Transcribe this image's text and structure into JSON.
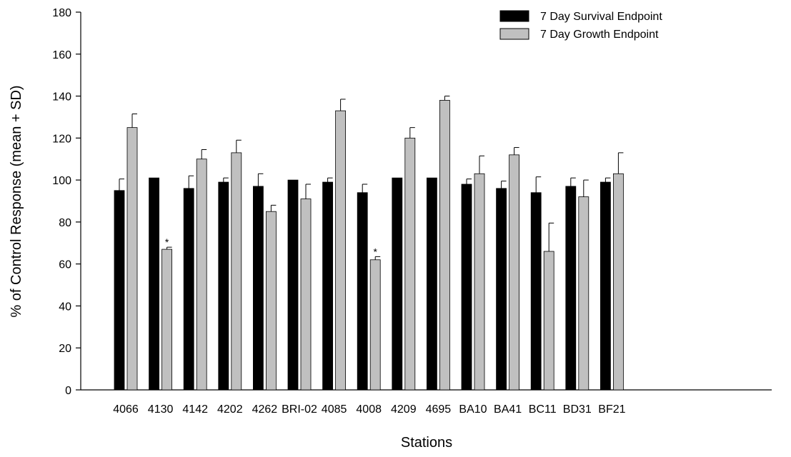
{
  "chart_data": {
    "type": "bar",
    "title": "",
    "xlabel": "Stations",
    "ylabel": "% of Control Response (mean + SD)",
    "ylim": [
      0,
      180
    ],
    "yticks": [
      0,
      20,
      40,
      60,
      80,
      100,
      120,
      140,
      160,
      180
    ],
    "grid": false,
    "legend_position": "top-right",
    "categories": [
      "4066",
      "4130",
      "4142",
      "4202",
      "4262",
      "BRI-02",
      "4085",
      "4008",
      "4209",
      "4695",
      "BA10",
      "BA41",
      "BC11",
      "BD31",
      "BF21"
    ],
    "series": [
      {
        "name": "7 Day Survival Endpoint",
        "color": "#000000",
        "values": [
          95,
          101,
          96,
          99,
          97,
          100,
          99,
          94,
          101,
          101,
          98,
          96,
          94,
          97,
          99
        ],
        "sd": [
          5.5,
          0,
          6,
          2,
          6,
          0,
          2,
          4,
          0,
          0,
          2.5,
          3.5,
          7.5,
          4,
          2
        ]
      },
      {
        "name": "7 Day Growth Endpoint",
        "color": "#c0c0c0",
        "values": [
          125,
          67,
          110,
          113,
          85,
          91,
          133,
          62,
          120,
          138,
          103,
          112,
          66,
          92,
          103
        ],
        "sd": [
          6.5,
          1,
          4.5,
          6,
          3,
          7,
          5.5,
          1.5,
          5,
          2,
          8.5,
          3.5,
          13.5,
          8,
          10
        ]
      }
    ],
    "annotations": [
      {
        "category": "4130",
        "series": "7 Day Growth Endpoint",
        "text": "*"
      },
      {
        "category": "4008",
        "series": "7 Day Growth Endpoint",
        "text": "*"
      }
    ]
  }
}
